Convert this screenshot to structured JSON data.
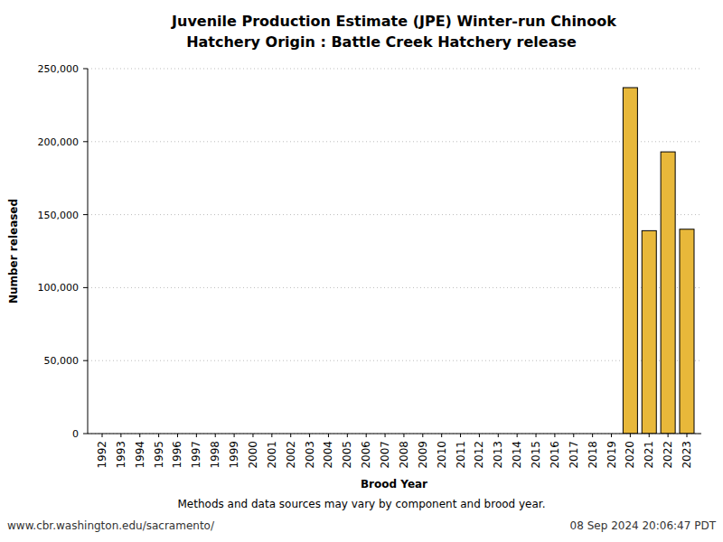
{
  "chart_data": {
    "type": "bar",
    "title": "Juvenile Production Estimate (JPE) Winter-run Chinook",
    "subtitle": "Hatchery Origin : Battle Creek Hatchery release",
    "x_label": "Brood Year",
    "y_label": "Number released",
    "note": "Methods and data sources may vary by component and brood year.",
    "source": "www.cbr.washington.edu/sacramento/",
    "timestamp": "08 Sep 2024 20:06:47 PDT",
    "categories": [
      "1992",
      "1993",
      "1994",
      "1995",
      "1996",
      "1997",
      "1998",
      "1999",
      "2000",
      "2001",
      "2002",
      "2003",
      "2004",
      "2005",
      "2006",
      "2007",
      "2008",
      "2009",
      "2010",
      "2011",
      "2012",
      "2013",
      "2014",
      "2015",
      "2016",
      "2017",
      "2018",
      "2019",
      "2020",
      "2021",
      "2022",
      "2023"
    ],
    "values": [
      null,
      null,
      null,
      null,
      null,
      null,
      null,
      null,
      null,
      null,
      null,
      null,
      null,
      null,
      null,
      null,
      null,
      null,
      null,
      null,
      null,
      null,
      null,
      null,
      null,
      null,
      null,
      null,
      237000,
      139000,
      193000,
      140000
    ],
    "color": "#e8b83a",
    "ylim": [
      0,
      250000
    ],
    "yticks": [
      0,
      {
        "value": 50000,
        "label": "50,000"
      },
      {
        "value": 100000,
        "label": "100,000"
      },
      {
        "value": 150000,
        "label": "150,000"
      },
      {
        "value": 200000,
        "label": "200,000"
      },
      {
        "value": 250000,
        "label": "250,000"
      }
    ],
    "grid": true
  }
}
